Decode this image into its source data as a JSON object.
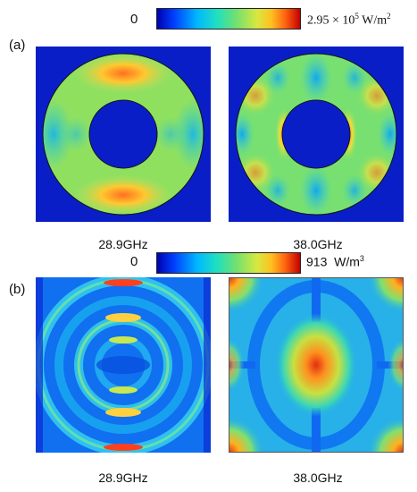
{
  "colormap": [
    "#0000b0",
    "#0040ff",
    "#00b8ff",
    "#20e0c0",
    "#70e070",
    "#d8e840",
    "#ffc020",
    "#ff6010",
    "#c00000"
  ],
  "row_a": {
    "label": "(a)",
    "colorbar_min": "0",
    "colorbar_max_mantissa": "2.95 × 10",
    "colorbar_max_exp": "5",
    "colorbar_max_unit": " W/m",
    "colorbar_max_unit_exp": "2",
    "panels": [
      {
        "caption": "28.9GHz"
      },
      {
        "caption": "38.0GHz"
      }
    ]
  },
  "row_b": {
    "label": "(b)",
    "colorbar_min": "0",
    "colorbar_max_value": "913",
    "colorbar_max_unit": "W/m",
    "colorbar_max_unit_exp": "3",
    "panels": [
      {
        "caption": "28.9GHz"
      },
      {
        "caption": "38.0GHz"
      }
    ]
  }
}
